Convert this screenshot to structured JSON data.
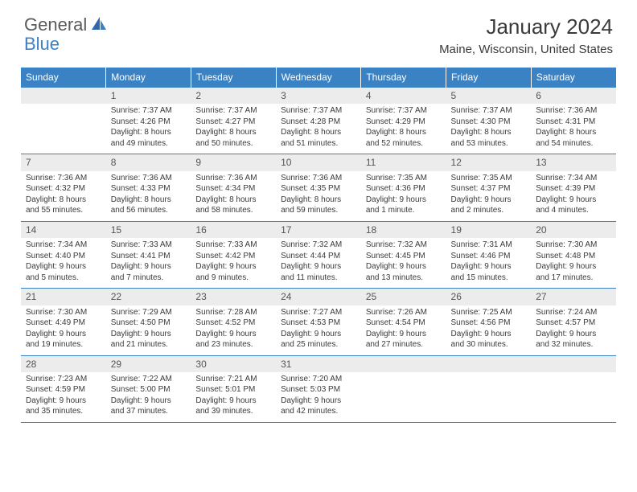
{
  "logo": {
    "general": "General",
    "blue": "Blue"
  },
  "title": "January 2024",
  "location": "Maine, Wisconsin, United States",
  "colors": {
    "header_bg": "#3b82c4",
    "header_text": "#ffffff",
    "daynum_bg": "#ececec",
    "border": "#3b82c4",
    "body_text": "#3a3a3a"
  },
  "weekdays": [
    "Sunday",
    "Monday",
    "Tuesday",
    "Wednesday",
    "Thursday",
    "Friday",
    "Saturday"
  ],
  "weeks": [
    [
      {
        "n": "",
        "lines": []
      },
      {
        "n": "1",
        "lines": [
          "Sunrise: 7:37 AM",
          "Sunset: 4:26 PM",
          "Daylight: 8 hours",
          "and 49 minutes."
        ]
      },
      {
        "n": "2",
        "lines": [
          "Sunrise: 7:37 AM",
          "Sunset: 4:27 PM",
          "Daylight: 8 hours",
          "and 50 minutes."
        ]
      },
      {
        "n": "3",
        "lines": [
          "Sunrise: 7:37 AM",
          "Sunset: 4:28 PM",
          "Daylight: 8 hours",
          "and 51 minutes."
        ]
      },
      {
        "n": "4",
        "lines": [
          "Sunrise: 7:37 AM",
          "Sunset: 4:29 PM",
          "Daylight: 8 hours",
          "and 52 minutes."
        ]
      },
      {
        "n": "5",
        "lines": [
          "Sunrise: 7:37 AM",
          "Sunset: 4:30 PM",
          "Daylight: 8 hours",
          "and 53 minutes."
        ]
      },
      {
        "n": "6",
        "lines": [
          "Sunrise: 7:36 AM",
          "Sunset: 4:31 PM",
          "Daylight: 8 hours",
          "and 54 minutes."
        ]
      }
    ],
    [
      {
        "n": "7",
        "lines": [
          "Sunrise: 7:36 AM",
          "Sunset: 4:32 PM",
          "Daylight: 8 hours",
          "and 55 minutes."
        ]
      },
      {
        "n": "8",
        "lines": [
          "Sunrise: 7:36 AM",
          "Sunset: 4:33 PM",
          "Daylight: 8 hours",
          "and 56 minutes."
        ]
      },
      {
        "n": "9",
        "lines": [
          "Sunrise: 7:36 AM",
          "Sunset: 4:34 PM",
          "Daylight: 8 hours",
          "and 58 minutes."
        ]
      },
      {
        "n": "10",
        "lines": [
          "Sunrise: 7:36 AM",
          "Sunset: 4:35 PM",
          "Daylight: 8 hours",
          "and 59 minutes."
        ]
      },
      {
        "n": "11",
        "lines": [
          "Sunrise: 7:35 AM",
          "Sunset: 4:36 PM",
          "Daylight: 9 hours",
          "and 1 minute."
        ]
      },
      {
        "n": "12",
        "lines": [
          "Sunrise: 7:35 AM",
          "Sunset: 4:37 PM",
          "Daylight: 9 hours",
          "and 2 minutes."
        ]
      },
      {
        "n": "13",
        "lines": [
          "Sunrise: 7:34 AM",
          "Sunset: 4:39 PM",
          "Daylight: 9 hours",
          "and 4 minutes."
        ]
      }
    ],
    [
      {
        "n": "14",
        "lines": [
          "Sunrise: 7:34 AM",
          "Sunset: 4:40 PM",
          "Daylight: 9 hours",
          "and 5 minutes."
        ]
      },
      {
        "n": "15",
        "lines": [
          "Sunrise: 7:33 AM",
          "Sunset: 4:41 PM",
          "Daylight: 9 hours",
          "and 7 minutes."
        ]
      },
      {
        "n": "16",
        "lines": [
          "Sunrise: 7:33 AM",
          "Sunset: 4:42 PM",
          "Daylight: 9 hours",
          "and 9 minutes."
        ]
      },
      {
        "n": "17",
        "lines": [
          "Sunrise: 7:32 AM",
          "Sunset: 4:44 PM",
          "Daylight: 9 hours",
          "and 11 minutes."
        ]
      },
      {
        "n": "18",
        "lines": [
          "Sunrise: 7:32 AM",
          "Sunset: 4:45 PM",
          "Daylight: 9 hours",
          "and 13 minutes."
        ]
      },
      {
        "n": "19",
        "lines": [
          "Sunrise: 7:31 AM",
          "Sunset: 4:46 PM",
          "Daylight: 9 hours",
          "and 15 minutes."
        ]
      },
      {
        "n": "20",
        "lines": [
          "Sunrise: 7:30 AM",
          "Sunset: 4:48 PM",
          "Daylight: 9 hours",
          "and 17 minutes."
        ]
      }
    ],
    [
      {
        "n": "21",
        "lines": [
          "Sunrise: 7:30 AM",
          "Sunset: 4:49 PM",
          "Daylight: 9 hours",
          "and 19 minutes."
        ]
      },
      {
        "n": "22",
        "lines": [
          "Sunrise: 7:29 AM",
          "Sunset: 4:50 PM",
          "Daylight: 9 hours",
          "and 21 minutes."
        ]
      },
      {
        "n": "23",
        "lines": [
          "Sunrise: 7:28 AM",
          "Sunset: 4:52 PM",
          "Daylight: 9 hours",
          "and 23 minutes."
        ]
      },
      {
        "n": "24",
        "lines": [
          "Sunrise: 7:27 AM",
          "Sunset: 4:53 PM",
          "Daylight: 9 hours",
          "and 25 minutes."
        ]
      },
      {
        "n": "25",
        "lines": [
          "Sunrise: 7:26 AM",
          "Sunset: 4:54 PM",
          "Daylight: 9 hours",
          "and 27 minutes."
        ]
      },
      {
        "n": "26",
        "lines": [
          "Sunrise: 7:25 AM",
          "Sunset: 4:56 PM",
          "Daylight: 9 hours",
          "and 30 minutes."
        ]
      },
      {
        "n": "27",
        "lines": [
          "Sunrise: 7:24 AM",
          "Sunset: 4:57 PM",
          "Daylight: 9 hours",
          "and 32 minutes."
        ]
      }
    ],
    [
      {
        "n": "28",
        "lines": [
          "Sunrise: 7:23 AM",
          "Sunset: 4:59 PM",
          "Daylight: 9 hours",
          "and 35 minutes."
        ]
      },
      {
        "n": "29",
        "lines": [
          "Sunrise: 7:22 AM",
          "Sunset: 5:00 PM",
          "Daylight: 9 hours",
          "and 37 minutes."
        ]
      },
      {
        "n": "30",
        "lines": [
          "Sunrise: 7:21 AM",
          "Sunset: 5:01 PM",
          "Daylight: 9 hours",
          "and 39 minutes."
        ]
      },
      {
        "n": "31",
        "lines": [
          "Sunrise: 7:20 AM",
          "Sunset: 5:03 PM",
          "Daylight: 9 hours",
          "and 42 minutes."
        ]
      },
      {
        "n": "",
        "lines": []
      },
      {
        "n": "",
        "lines": []
      },
      {
        "n": "",
        "lines": []
      }
    ]
  ]
}
